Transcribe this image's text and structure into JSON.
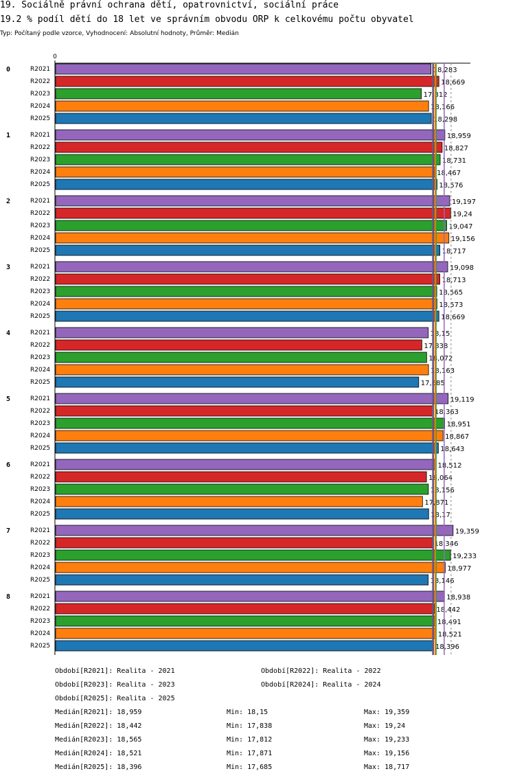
{
  "header": {
    "title": "19. Sociálně právní ochrana dětí, opatrovnictví, sociální práce",
    "subtitle": "19.2 % podíl dětí do 18 let ve správním obvodu ORP k celkovému počtu obyvatel",
    "info": "Typ: Počítaný podle vzorce, Vyhodnocení: Absolutní hodnoty, Průměr: Medián"
  },
  "chart_data": {
    "type": "bar",
    "orientation": "horizontal",
    "title": "19.2 % podíl dětí do 18 let ve správním obvodu ORP k celkovému počtu obyvatel",
    "axis_zero_label": "0",
    "xlim": [
      0,
      19.75
    ],
    "groups": [
      "0",
      "1",
      "2",
      "3",
      "4",
      "5",
      "6",
      "7",
      "8"
    ],
    "series": [
      {
        "name": "R2021",
        "color": "#9467bd",
        "values": [
          18.283,
          18.959,
          19.197,
          19.098,
          18.15,
          19.119,
          18.512,
          19.359,
          18.938
        ],
        "labels": [
          "18,283",
          "18,959",
          "19,197",
          "19,098",
          "18,15",
          "19,119",
          "18,512",
          "19,359",
          "18,938"
        ]
      },
      {
        "name": "R2022",
        "color": "#d62728",
        "values": [
          18.669,
          18.827,
          19.24,
          18.713,
          17.838,
          18.363,
          18.064,
          18.346,
          18.442
        ],
        "labels": [
          "18,669",
          "18,827",
          "19,24",
          "18,713",
          "17,838",
          "18,363",
          "18,064",
          "18,346",
          "18,442"
        ]
      },
      {
        "name": "R2023",
        "color": "#2ca02c",
        "values": [
          17.812,
          18.731,
          19.047,
          18.565,
          18.072,
          18.951,
          18.156,
          19.233,
          18.491
        ],
        "labels": [
          "17,812",
          "18,731",
          "19,047",
          "18,565",
          "18,072",
          "18,951",
          "18,156",
          "19,233",
          "18,491"
        ]
      },
      {
        "name": "R2024",
        "color": "#ff7f0e",
        "values": [
          18.166,
          18.467,
          19.156,
          18.573,
          18.163,
          18.867,
          17.871,
          18.977,
          18.521
        ],
        "labels": [
          "18,166",
          "18,467",
          "19,156",
          "18,573",
          "18,163",
          "18,867",
          "17,871",
          "18,977",
          "18,521"
        ]
      },
      {
        "name": "R2025",
        "color": "#1f77b4",
        "values": [
          18.298,
          18.576,
          18.717,
          18.669,
          17.685,
          18.643,
          18.17,
          18.146,
          18.396
        ],
        "labels": [
          "18,298",
          "18,576",
          "18,717",
          "18,669",
          "17,685",
          "18,643",
          "18,17",
          "18,146",
          "18,396"
        ]
      }
    ],
    "reference_lines": [
      {
        "name": "median-r2021",
        "color": "#9467bd",
        "value": 18.959
      },
      {
        "name": "median-r2022",
        "color": "#d62728",
        "value": 18.442
      },
      {
        "name": "median-r2023",
        "color": "#2ca02c",
        "value": 18.565
      },
      {
        "name": "median-r2024",
        "color": "#ff7f0e",
        "value": 18.521
      },
      {
        "name": "median-r2025",
        "color": "#1f77b4",
        "value": 18.396
      }
    ]
  },
  "footer": {
    "legend": [
      "Období[R2021]: Realita - 2021",
      "Období[R2022]: Realita - 2022",
      "Období[R2023]: Realita - 2023",
      "Období[R2024]: Realita - 2024",
      "Období[R2025]: Realita - 2025"
    ],
    "stats": [
      {
        "median": "Medián[R2021]: 18,959",
        "min": "Min: 18,15",
        "max": "Max: 19,359"
      },
      {
        "median": "Medián[R2022]: 18,442",
        "min": "Min: 17,838",
        "max": "Max: 19,24"
      },
      {
        "median": "Medián[R2023]: 18,565",
        "min": "Min: 17,812",
        "max": "Max: 19,233"
      },
      {
        "median": "Medián[R2024]: 18,521",
        "min": "Min: 17,871",
        "max": "Max: 19,156"
      },
      {
        "median": "Medián[R2025]: 18,396",
        "min": "Min: 17,685",
        "max": "Max: 18,717"
      }
    ]
  }
}
